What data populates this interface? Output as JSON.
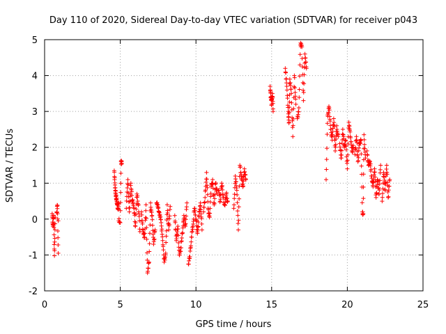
{
  "chart_data": {
    "type": "scatter",
    "title": "Day 110 of 2020, Sidereal Day-to-day VTEC variation (SDTVAR) for receiver p043",
    "xlabel": "GPS time / hours",
    "ylabel": "SDTVAR / TECUs",
    "xlim": [
      0,
      25
    ],
    "ylim": [
      -2,
      5
    ],
    "xticks": [
      0,
      5,
      10,
      15,
      20,
      25
    ],
    "yticks": [
      -2,
      -1,
      0,
      1,
      2,
      3,
      4,
      5
    ],
    "grid": true,
    "marker": "+",
    "color": "#ff0000",
    "series": [
      {
        "name": "SDTVAR",
        "segments": [
          {
            "x": [
              0.5,
              0.55,
              0.6,
              0.6,
              0.65,
              0.7
            ],
            "y": [
              0.15,
              -0.2,
              0.1,
              0.1,
              -1.02,
              0.05
            ]
          },
          {
            "x": [
              0.8,
              0.85,
              0.9,
              0.9
            ],
            "y": [
              0.2,
              0.38,
              -0.95,
              -0.05
            ]
          },
          {
            "x": [
              4.6,
              4.65,
              4.7,
              4.75,
              4.8,
              4.85,
              4.9
            ],
            "y": [
              1.35,
              0.95,
              0.7,
              0.55,
              0.4,
              0.3,
              0.45
            ]
          },
          {
            "x": [
              4.9,
              5.0,
              5.05,
              5.1
            ],
            "y": [
              -0.05,
              -0.1,
              1.6,
              1.55
            ]
          },
          {
            "x": [
              5.4,
              5.5,
              5.6,
              5.7,
              5.8,
              5.9,
              6.0,
              6.1,
              6.2,
              6.3
            ],
            "y": [
              0.3,
              1.1,
              0.2,
              1.0,
              0.5,
              0.3,
              -0.2,
              0.7,
              0.4,
              -0.35
            ]
          },
          {
            "x": [
              6.4,
              6.5,
              6.6,
              6.7,
              6.8,
              6.9,
              7.0,
              7.1,
              7.2,
              7.3
            ],
            "y": [
              0.2,
              -0.3,
              -0.5,
              0.4,
              -1.5,
              -1.2,
              0.45,
              0.1,
              -0.7,
              -0.3
            ]
          },
          {
            "x": [
              7.4,
              7.5,
              7.6,
              7.7,
              7.8,
              7.9,
              8.0,
              8.1,
              8.2,
              8.3
            ],
            "y": [
              0.45,
              0.3,
              0.1,
              -0.1,
              -0.6,
              -1.2,
              -0.95,
              0.4,
              -0.3,
              0.35
            ]
          },
          {
            "x": [
              8.6,
              8.7,
              8.8,
              8.9,
              9.0,
              9.1,
              9.2,
              9.3,
              9.4
            ],
            "y": [
              0.1,
              -0.6,
              -0.2,
              -1.0,
              -0.8,
              -0.4,
              0.1,
              -0.2,
              0.45
            ]
          },
          {
            "x": [
              9.5,
              9.6,
              9.7,
              9.8,
              9.9,
              10.0,
              10.1,
              10.2,
              10.3,
              10.4
            ],
            "y": [
              -1.25,
              -1.05,
              -0.5,
              -0.2,
              0.3,
              0.0,
              -0.4,
              0.1,
              0.45,
              -0.3
            ]
          },
          {
            "x": [
              10.5,
              10.6,
              10.7,
              10.8,
              10.9,
              11.0,
              11.1,
              11.2,
              11.3,
              11.4
            ],
            "y": [
              0.2,
              0.6,
              1.3,
              0.3,
              0.05,
              0.9,
              1.1,
              0.4,
              1.0,
              0.7
            ]
          },
          {
            "x": [
              11.5,
              11.6,
              11.7,
              11.8,
              11.9,
              12.0,
              12.1
            ],
            "y": [
              0.8,
              0.5,
              1.0,
              0.6,
              0.4,
              0.7,
              0.5
            ]
          },
          {
            "x": [
              12.5,
              12.6,
              12.7,
              12.8,
              12.9,
              13.0,
              13.1,
              13.2,
              13.3
            ],
            "y": [
              0.3,
              1.2,
              0.8,
              -0.3,
              1.5,
              1.2,
              0.9,
              1.4,
              1.1
            ]
          },
          {
            "x": [
              14.9,
              14.95,
              15.0,
              15.05,
              15.1
            ],
            "y": [
              3.7,
              3.4,
              3.2,
              3.5,
              3.0
            ]
          },
          {
            "x": [
              15.9,
              16.0,
              16.1,
              16.15,
              16.2,
              16.3,
              16.4,
              16.5,
              16.6
            ],
            "y": [
              4.2,
              3.7,
              3.0,
              2.7,
              3.9,
              3.5,
              2.3,
              4.0,
              3.2
            ]
          },
          {
            "x": [
              16.7,
              16.8,
              16.9,
              17.0,
              17.1,
              17.2,
              17.3
            ],
            "y": [
              2.8,
              3.1,
              4.85,
              4.8,
              3.3,
              4.6,
              4.2
            ]
          },
          {
            "x": [
              18.6,
              18.7,
              18.8,
              18.9,
              19.0,
              19.1,
              19.2,
              19.3,
              19.4
            ],
            "y": [
              1.1,
              2.9,
              3.1,
              2.5,
              2.2,
              2.8,
              1.9,
              2.6,
              2.3
            ]
          },
          {
            "x": [
              19.5,
              19.6,
              19.7,
              19.8,
              19.9,
              20.0,
              20.1,
              20.2,
              20.3,
              20.4
            ],
            "y": [
              2.1,
              1.7,
              2.5,
              2.0,
              2.2,
              1.4,
              2.7,
              2.3,
              1.9,
              2.0
            ]
          },
          {
            "x": [
              20.5,
              20.6,
              20.7,
              20.8,
              20.9,
              21.0,
              21.05,
              21.1,
              21.2
            ],
            "y": [
              1.8,
              2.3,
              1.6,
              2.1,
              2.2,
              0.2,
              0.15,
              2.35,
              1.7
            ]
          },
          {
            "x": [
              21.3,
              21.4,
              21.5,
              21.6,
              21.7,
              21.8,
              21.9,
              22.0,
              22.1,
              22.2
            ],
            "y": [
              1.9,
              1.5,
              1.6,
              1.2,
              0.9,
              1.4,
              0.6,
              1.1,
              0.7,
              1.5
            ]
          },
          {
            "x": [
              22.3,
              22.4,
              22.5,
              22.6,
              22.7,
              22.8
            ],
            "y": [
              0.5,
              1.3,
              0.8,
              1.5,
              0.6,
              1.1
            ]
          }
        ]
      }
    ]
  }
}
